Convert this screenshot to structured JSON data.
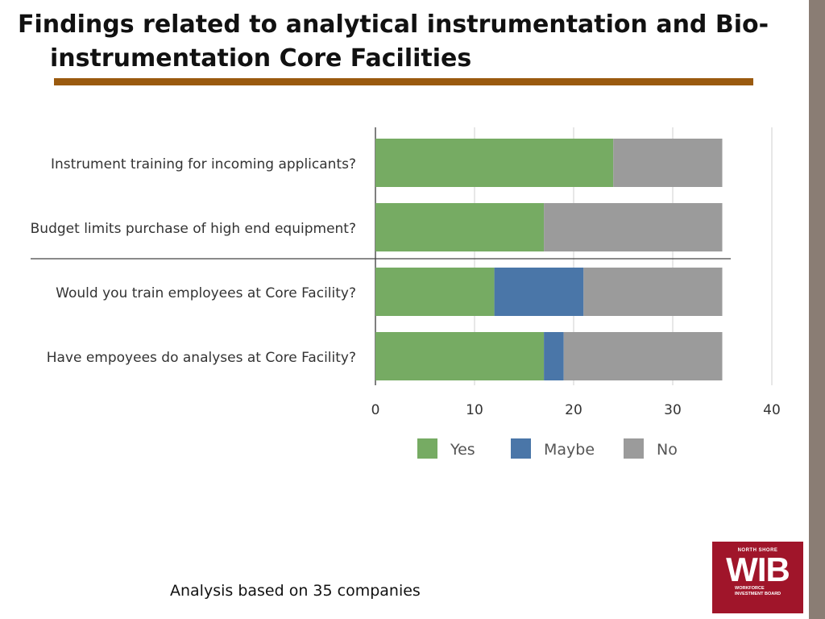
{
  "slide": {
    "title": "Findings related to analytical instrumentation and Bio-instrumentation Core Facilities",
    "footnote": "Analysis based on 35 companies"
  },
  "logo": {
    "top_text": "NORTH SHORE",
    "main_text": "WIB",
    "sub_line1": "WORKFORCE",
    "sub_line2": "INVESTMENT BOARD",
    "color": "#a0152a"
  },
  "colors": {
    "rule": "#9a5a0f",
    "side_bar": "#8a7d74"
  },
  "chart_data": {
    "type": "bar",
    "orientation": "horizontal",
    "stacked": true,
    "categories": [
      "Instrument training for incoming applicants?",
      "Budget limits purchase of high end equipment?",
      "Would you train employees at Core Facility?",
      "Have empoyees do analyses at Core Facility?"
    ],
    "series": [
      {
        "name": "Yes",
        "color": "#76ab63",
        "values": [
          24,
          17,
          12,
          17
        ]
      },
      {
        "name": "Maybe",
        "color": "#4a76a8",
        "values": [
          0,
          0,
          9,
          2
        ]
      },
      {
        "name": "No",
        "color": "#9b9b9b",
        "values": [
          11,
          18,
          14,
          16
        ]
      }
    ],
    "xlim": [
      0,
      40
    ],
    "xticks": [
      0,
      10,
      20,
      30,
      40
    ],
    "grid": true,
    "legend": "bottom"
  }
}
